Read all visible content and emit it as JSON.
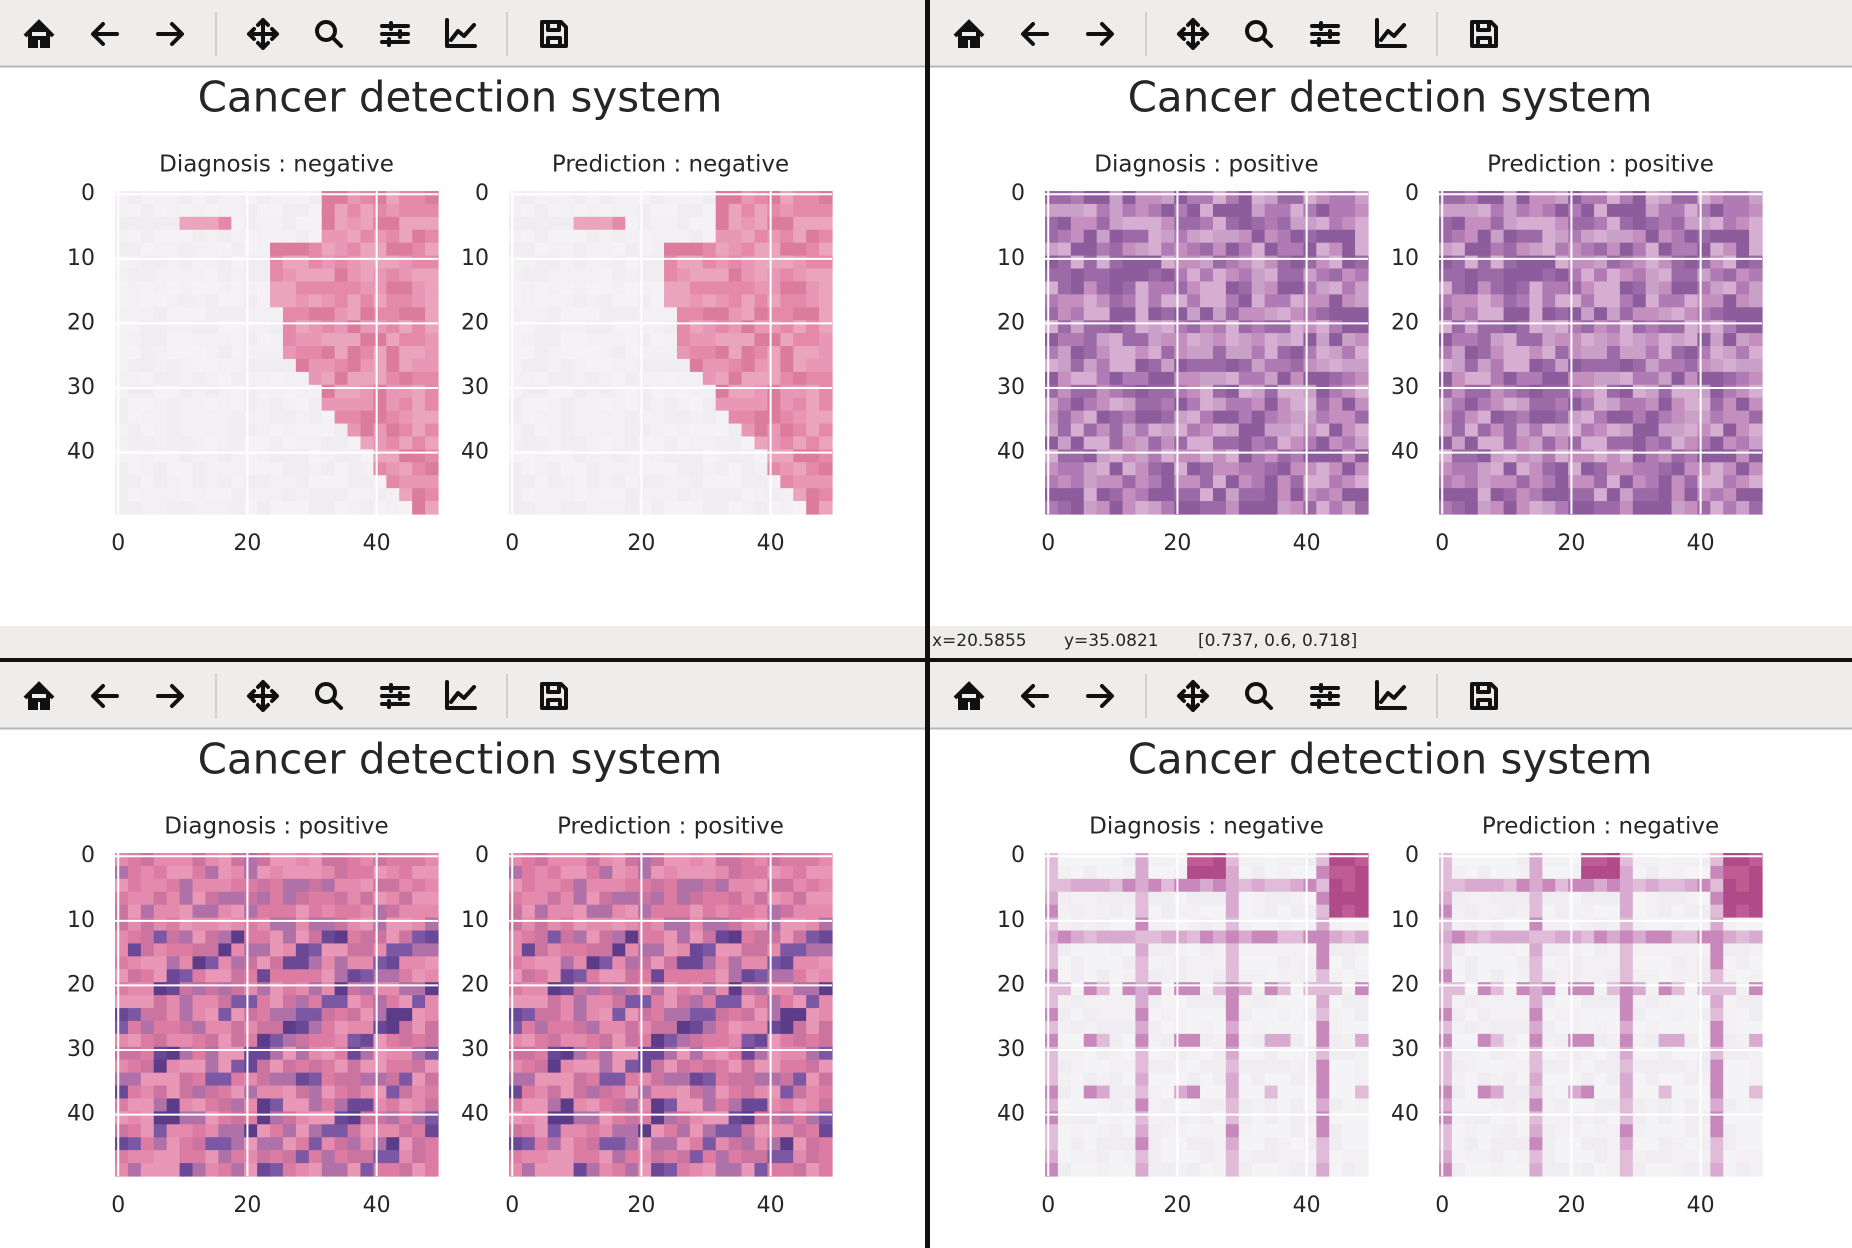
{
  "windows": [
    {
      "title": "Cancer detection system",
      "panels": [
        {
          "title": "Diagnosis : negative",
          "yticks": [
            0,
            10,
            20,
            30,
            40
          ],
          "xticks": [
            0,
            20,
            40
          ]
        },
        {
          "title": "Prediction : negative",
          "yticks": [
            0,
            10,
            20,
            30,
            40
          ],
          "xticks": [
            0,
            20,
            40
          ]
        }
      ]
    },
    {
      "title": "Cancer detection system",
      "panels": [
        {
          "title": "Diagnosis : positive",
          "yticks": [
            0,
            10,
            20,
            30,
            40
          ],
          "xticks": [
            0,
            20,
            40
          ]
        },
        {
          "title": "Prediction : positive",
          "yticks": [
            0,
            10,
            20,
            30,
            40
          ],
          "xticks": [
            0,
            20,
            40
          ]
        }
      ],
      "status": {
        "x": "x=20.5855",
        "y": "y=35.0821",
        "rgb": "[0.737, 0.6, 0.718]"
      }
    },
    {
      "title": "Cancer detection system",
      "panels": [
        {
          "title": "Diagnosis : positive",
          "yticks": [
            0,
            10,
            20,
            30,
            40
          ],
          "xticks": [
            0,
            20,
            40
          ]
        },
        {
          "title": "Prediction : positive",
          "yticks": [
            0,
            10,
            20,
            30,
            40
          ],
          "xticks": [
            0,
            20,
            40
          ]
        }
      ]
    },
    {
      "title": "Cancer detection system",
      "panels": [
        {
          "title": "Diagnosis : negative",
          "yticks": [
            0,
            10,
            20,
            30,
            40
          ],
          "xticks": [
            0,
            20,
            40
          ]
        },
        {
          "title": "Prediction : negative",
          "yticks": [
            0,
            10,
            20,
            30,
            40
          ],
          "xticks": [
            0,
            20,
            40
          ]
        }
      ]
    }
  ]
}
